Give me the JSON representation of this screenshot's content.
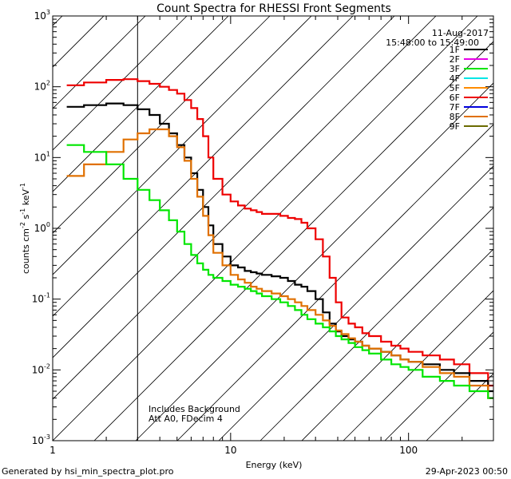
{
  "chart_data": {
    "type": "line",
    "title": "Count Spectra for RHESSI Front Segments",
    "xlabel": "Energy (keV)",
    "ylabel_parts": [
      "counts cm",
      "-2",
      " s",
      "-1",
      " keV",
      "-1"
    ],
    "x_scale": "log",
    "y_scale": "log",
    "xlim": [
      1,
      300
    ],
    "ylim": [
      0.001,
      1000
    ],
    "x_ticks": [
      {
        "value": 1,
        "label": "1"
      },
      {
        "value": 10,
        "label": "10"
      },
      {
        "value": 100,
        "label": "100"
      }
    ],
    "y_ticks": [
      {
        "value": 0.001,
        "base": "10",
        "exp": "-3"
      },
      {
        "value": 0.01,
        "base": "10",
        "exp": "-2"
      },
      {
        "value": 0.1,
        "base": "10",
        "exp": "-1"
      },
      {
        "value": 1,
        "base": "10",
        "exp": "0"
      },
      {
        "value": 10,
        "base": "10",
        "exp": "1"
      },
      {
        "value": 100,
        "base": "10",
        "exp": "2"
      },
      {
        "value": 1000,
        "base": "10",
        "exp": "3"
      }
    ],
    "shaded_region": {
      "x_from": 1,
      "x_to": 3,
      "pattern": "diagonal hatch"
    },
    "date": "11-Aug-2017",
    "time_range": "15:48:00 to 15:49:00",
    "annotations": [
      "Includes Background",
      "Att A0, FDecim 4"
    ],
    "legend": [
      {
        "name": "1F",
        "color": "#000000"
      },
      {
        "name": "2F",
        "color": "#e600e6"
      },
      {
        "name": "3F",
        "color": "#00e600"
      },
      {
        "name": "4F",
        "color": "#00e6e6"
      },
      {
        "name": "5F",
        "color": "#ff8c00"
      },
      {
        "name": "6F",
        "color": "#ee0000"
      },
      {
        "name": "7F",
        "color": "#0000dd"
      },
      {
        "name": "8F",
        "color": "#e07000"
      },
      {
        "name": "9F",
        "color": "#6b6b00"
      }
    ],
    "series": [
      {
        "name": "6F",
        "color": "#ee0000",
        "x": [
          1.2,
          1.5,
          2,
          2.5,
          3,
          3.5,
          4,
          4.5,
          5,
          5.5,
          6,
          6.5,
          7,
          7.5,
          8,
          9,
          10,
          11,
          12,
          13,
          14,
          15,
          17,
          19,
          21,
          23,
          25,
          27,
          30,
          33,
          36,
          39,
          42,
          46,
          50,
          55,
          60,
          70,
          80,
          90,
          100,
          120,
          150,
          180,
          220,
          280
        ],
        "values": [
          105,
          115,
          125,
          128,
          120,
          110,
          100,
          90,
          80,
          65,
          50,
          35,
          20,
          10,
          5,
          3,
          2.4,
          2.1,
          1.9,
          1.8,
          1.7,
          1.6,
          1.6,
          1.5,
          1.4,
          1.35,
          1.2,
          1.0,
          0.7,
          0.4,
          0.2,
          0.09,
          0.055,
          0.045,
          0.04,
          0.033,
          0.03,
          0.025,
          0.022,
          0.02,
          0.018,
          0.016,
          0.014,
          0.012,
          0.009,
          0.006
        ]
      },
      {
        "name": "1F",
        "color": "#000000",
        "x": [
          1.2,
          1.5,
          2,
          2.5,
          3,
          3.5,
          4,
          4.5,
          5,
          5.5,
          6,
          6.5,
          7,
          7.5,
          8,
          9,
          10,
          11,
          12,
          13,
          14,
          15,
          17,
          19,
          21,
          23,
          25,
          27,
          30,
          33,
          36,
          39,
          42,
          46,
          50,
          55,
          60,
          70,
          80,
          90,
          100,
          120,
          150,
          180,
          220,
          280
        ],
        "values": [
          52,
          55,
          58,
          55,
          48,
          40,
          30,
          22,
          15,
          10,
          6,
          3.5,
          2,
          1.1,
          0.6,
          0.4,
          0.3,
          0.28,
          0.25,
          0.24,
          0.23,
          0.22,
          0.21,
          0.2,
          0.18,
          0.16,
          0.15,
          0.13,
          0.1,
          0.065,
          0.045,
          0.035,
          0.03,
          0.027,
          0.025,
          0.022,
          0.02,
          0.018,
          0.016,
          0.014,
          0.013,
          0.012,
          0.01,
          0.009,
          0.007,
          0.005
        ]
      },
      {
        "name": "8F",
        "color": "#e07000",
        "x": [
          1.2,
          1.5,
          2,
          2.5,
          3,
          3.5,
          4,
          4.5,
          5,
          5.5,
          6,
          6.5,
          7,
          7.5,
          8,
          9,
          10,
          11,
          12,
          13,
          14,
          15,
          17,
          19,
          21,
          23,
          25,
          27,
          30,
          33,
          36,
          39,
          42,
          46,
          50,
          55,
          60,
          70,
          80,
          90,
          100,
          120,
          150,
          180,
          220,
          280
        ],
        "values": [
          5.5,
          8,
          12,
          18,
          22,
          25,
          25,
          20,
          14,
          9,
          5,
          2.8,
          1.5,
          0.8,
          0.45,
          0.3,
          0.22,
          0.19,
          0.17,
          0.15,
          0.14,
          0.13,
          0.12,
          0.11,
          0.1,
          0.09,
          0.08,
          0.07,
          0.06,
          0.05,
          0.042,
          0.036,
          0.032,
          0.028,
          0.025,
          0.022,
          0.02,
          0.018,
          0.016,
          0.014,
          0.013,
          0.011,
          0.009,
          0.008,
          0.006,
          0.004
        ]
      },
      {
        "name": "3F",
        "color": "#00e600",
        "x": [
          1.2,
          1.5,
          2,
          2.5,
          3,
          3.5,
          4,
          4.5,
          5,
          5.5,
          6,
          6.5,
          7,
          7.5,
          8,
          9,
          10,
          11,
          12,
          13,
          14,
          15,
          17,
          19,
          21,
          23,
          25,
          27,
          30,
          33,
          36,
          39,
          42,
          46,
          50,
          55,
          60,
          70,
          80,
          90,
          100,
          120,
          150,
          180,
          220,
          280
        ],
        "values": [
          15,
          12,
          8,
          5,
          3.5,
          2.5,
          1.8,
          1.3,
          0.9,
          0.6,
          0.42,
          0.32,
          0.26,
          0.22,
          0.2,
          0.18,
          0.16,
          0.15,
          0.14,
          0.13,
          0.12,
          0.11,
          0.1,
          0.09,
          0.08,
          0.07,
          0.06,
          0.052,
          0.045,
          0.04,
          0.035,
          0.03,
          0.027,
          0.024,
          0.021,
          0.019,
          0.017,
          0.014,
          0.012,
          0.011,
          0.01,
          0.008,
          0.007,
          0.006,
          0.005,
          0.004
        ]
      }
    ]
  },
  "footer": {
    "left": "Generated by hsi_min_spectra_plot.pro",
    "right": "29-Apr-2023 00:50"
  }
}
